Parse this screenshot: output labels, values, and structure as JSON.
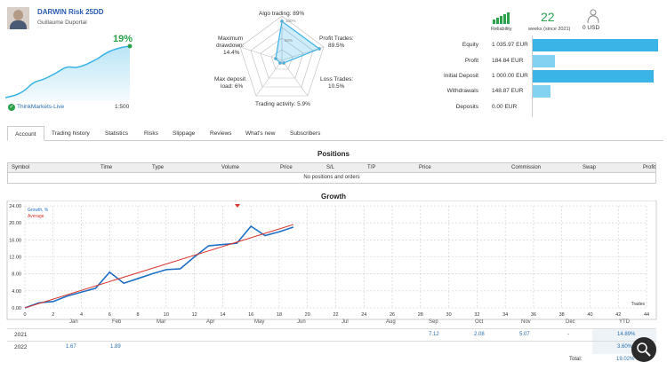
{
  "account": {
    "name": "DARWIN Risk 25DD",
    "owner": "Guillaume Duportal",
    "growth": "19%",
    "broker": "ThinkMarkets-Live",
    "leverage": "1:500"
  },
  "radar": {
    "algo": "Algo trading: 89%",
    "profit_trades_1": "Profit Trades:",
    "profit_trades_2": "89.5%",
    "loss_trades_1": "Loss Trades:",
    "loss_trades_2": "10.5%",
    "activity": "Trading activity: 5.9%",
    "deposit_load_1": "Max deposit",
    "deposit_load_2": "load: 6%",
    "drawdown_1": "Maximum",
    "drawdown_2": "drawdown:",
    "drawdown_3": "14.4%",
    "ring_100": "100%",
    "ring_50": "50%"
  },
  "rating": {
    "reliability": "Reliability",
    "weeks": "22",
    "weeks_label": "weeks (since 2021)",
    "subscribers": "0 USD"
  },
  "balances": [
    {
      "label": "Equity",
      "value": "1 035.97 EUR",
      "fill": 0.97
    },
    {
      "label": "Profit",
      "value": "184.84 EUR",
      "fill": 0.17
    },
    {
      "label": "Initial Deposit",
      "value": "1 000.00 EUR",
      "fill": 0.94
    },
    {
      "label": "Withdrawals",
      "value": "148.87 EUR",
      "fill": 0.14
    },
    {
      "label": "Deposits",
      "value": "0.00 EUR",
      "fill": 0
    }
  ],
  "tabs": [
    "Account",
    "Trading history",
    "Statistics",
    "Risks",
    "Slippage",
    "Reviews",
    "What's new",
    "Subscribers"
  ],
  "positions": {
    "title": "Positions",
    "columns": [
      "Symbol",
      "Time",
      "Type",
      "Volume",
      "Price",
      "S/L",
      "T/P",
      "Price",
      "Commission",
      "Swap",
      "Profit"
    ],
    "empty": "No positions and orders"
  },
  "growth": {
    "title": "Growth",
    "legend_growth": "Growth, %",
    "legend_average": "Average",
    "x_axis_label": "Trades"
  },
  "chart_data": {
    "type": "line",
    "title": "Growth",
    "xlabel": "Trades",
    "ylabel": "",
    "xlim": [
      0,
      44
    ],
    "ylim": [
      0,
      24
    ],
    "x_ticks": [
      0,
      2,
      4,
      6,
      8,
      10,
      12,
      14,
      16,
      18,
      20,
      22,
      24,
      26,
      28,
      30,
      32,
      34,
      36,
      38,
      40,
      42,
      44
    ],
    "y_ticks": [
      "0.00",
      "4.00",
      "8.00",
      "12.00",
      "16.00",
      "20.00",
      "24.00"
    ],
    "series": [
      {
        "name": "Growth, %",
        "color": "#1f6fc4",
        "x": [
          0,
          1,
          2,
          3,
          4,
          5,
          6,
          7,
          8,
          9,
          10,
          11,
          12,
          13,
          14,
          15,
          16,
          17,
          18,
          19
        ],
        "y": [
          0,
          1.2,
          1.5,
          2.8,
          3.7,
          4.6,
          8.4,
          5.8,
          6.9,
          8.0,
          9.0,
          9.2,
          12.0,
          14.6,
          14.9,
          15.2,
          19.2,
          17.0,
          17.9,
          19.0
        ]
      },
      {
        "name": "Average",
        "color": "#d9332b",
        "x": [
          0,
          19
        ],
        "y": [
          0,
          19.6
        ]
      }
    ]
  },
  "year_table": {
    "months": [
      "Jan",
      "Feb",
      "Mar",
      "Apr",
      "May",
      "Jun",
      "Jul",
      "Aug",
      "Sep",
      "Oct",
      "Nov",
      "Dec",
      "YTD"
    ],
    "rows": [
      {
        "year": "2021",
        "values": [
          "",
          "",
          "",
          "",
          "",
          "",
          "",
          "",
          "7.12",
          "2.08",
          "5.07",
          "-",
          "14.89%"
        ]
      },
      {
        "year": "2022",
        "values": [
          "1.67",
          "1.89",
          "",
          "",
          "",
          "",
          "",
          "",
          "",
          "",
          "",
          "",
          "3.60%"
        ]
      }
    ],
    "total_label": "Total:",
    "total_value": "19.02%"
  },
  "colors": {
    "accent": "#3ab3e6",
    "positive": "#2ba14b",
    "link": "#2a6fb0"
  }
}
